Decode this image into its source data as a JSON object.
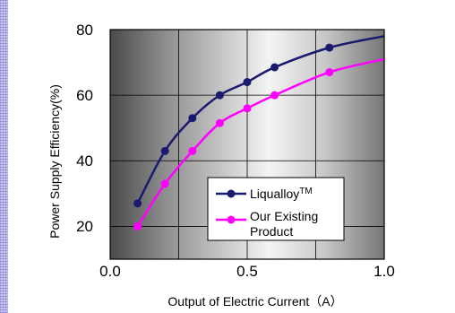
{
  "chart_data": {
    "type": "line",
    "xlabel": "Output of Electric Current（A）",
    "ylabel": "Power Supply Efficiency(%)",
    "xlim": [
      0.0,
      1.0
    ],
    "ylim": [
      10,
      80
    ],
    "x_tick_labels": [
      "0.0",
      "0.5",
      "1.0"
    ],
    "x_ticks": [
      0.0,
      0.5,
      1.0
    ],
    "y_tick_labels": [
      "20",
      "40",
      "60",
      "80"
    ],
    "y_ticks": [
      20,
      40,
      60,
      80
    ],
    "grid": true,
    "legend_position": "bottom-right",
    "series": [
      {
        "name": "Liqualloy",
        "name_superscript": "TM",
        "color": "#1a1a6e",
        "marker_color": "#1a1a6e",
        "x": [
          0.1,
          0.2,
          0.3,
          0.4,
          0.5,
          0.6,
          0.8
        ],
        "y": [
          27,
          43,
          53,
          60,
          64,
          68.5,
          74.5
        ],
        "curve_end": [
          1.0,
          78
        ]
      },
      {
        "name_lines": [
          "Our Existing",
          "Product"
        ],
        "color": "#ff00ff",
        "marker_color": "#ff00ff",
        "x": [
          0.1,
          0.2,
          0.3,
          0.4,
          0.5,
          0.6,
          0.8
        ],
        "y": [
          20,
          33,
          43,
          51.5,
          56,
          60,
          67
        ],
        "curve_end": [
          1.0,
          71
        ]
      }
    ]
  }
}
